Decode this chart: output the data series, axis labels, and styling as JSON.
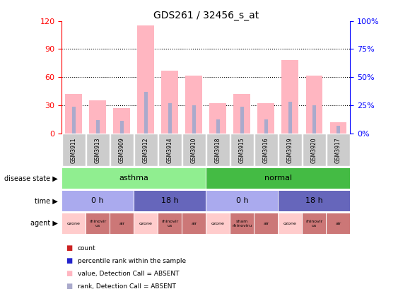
{
  "title": "GDS261 / 32456_s_at",
  "samples": [
    "GSM3911",
    "GSM3913",
    "GSM3909",
    "GSM3912",
    "GSM3914",
    "GSM3910",
    "GSM3918",
    "GSM3915",
    "GSM3916",
    "GSM3919",
    "GSM3920",
    "GSM3917"
  ],
  "pink_bars": [
    42,
    35,
    27,
    115,
    67,
    62,
    32,
    42,
    32,
    78,
    62,
    12
  ],
  "blue_bars": [
    28,
    14,
    13,
    44,
    32,
    30,
    15,
    28,
    15,
    34,
    30,
    8
  ],
  "ylim_left": [
    0,
    120
  ],
  "ylim_right": [
    0,
    100
  ],
  "yticks_left": [
    0,
    30,
    60,
    90,
    120
  ],
  "yticks_right": [
    0,
    25,
    50,
    75,
    100
  ],
  "ytick_labels_right": [
    "0%",
    "25%",
    "50%",
    "75%",
    "100%"
  ],
  "disease_state_asthma_color": "#90EE90",
  "disease_state_normal_color": "#44BB44",
  "time_groups": [
    {
      "label": "0 h",
      "start": 0,
      "end": 3,
      "color": "#AAAAEE"
    },
    {
      "label": "18 h",
      "start": 3,
      "end": 6,
      "color": "#6666BB"
    },
    {
      "label": "0 h",
      "start": 6,
      "end": 9,
      "color": "#AAAAEE"
    },
    {
      "label": "18 h",
      "start": 9,
      "end": 12,
      "color": "#6666BB"
    }
  ],
  "agent_groups": [
    {
      "label": "ozone",
      "start": 0,
      "end": 1,
      "color": "#FFCCCC"
    },
    {
      "label": "rhinovir\nus",
      "start": 1,
      "end": 2,
      "color": "#CC7777"
    },
    {
      "label": "air",
      "start": 2,
      "end": 3,
      "color": "#CC7777"
    },
    {
      "label": "ozone",
      "start": 3,
      "end": 4,
      "color": "#FFCCCC"
    },
    {
      "label": "rhinovir\nus",
      "start": 4,
      "end": 5,
      "color": "#CC7777"
    },
    {
      "label": "air",
      "start": 5,
      "end": 6,
      "color": "#CC7777"
    },
    {
      "label": "ozone",
      "start": 6,
      "end": 7,
      "color": "#FFCCCC"
    },
    {
      "label": "sham\nrhinoviru",
      "start": 7,
      "end": 8,
      "color": "#CC7777"
    },
    {
      "label": "air",
      "start": 8,
      "end": 9,
      "color": "#CC7777"
    },
    {
      "label": "ozone",
      "start": 9,
      "end": 10,
      "color": "#FFCCCC"
    },
    {
      "label": "rhinovir\nus",
      "start": 10,
      "end": 11,
      "color": "#CC7777"
    },
    {
      "label": "air",
      "start": 11,
      "end": 12,
      "color": "#CC7777"
    }
  ],
  "legend_items": [
    {
      "label": "count",
      "color": "#CC2222"
    },
    {
      "label": "percentile rank within the sample",
      "color": "#2222CC"
    },
    {
      "label": "value, Detection Call = ABSENT",
      "color": "#FFB6C1"
    },
    {
      "label": "rank, Detection Call = ABSENT",
      "color": "#AAAACC"
    }
  ],
  "pink_bar_color": "#FFB6C1",
  "blue_bar_color": "#AAAACC",
  "sample_box_color": "#CCCCCC",
  "grid_yticks": [
    30,
    60,
    90
  ]
}
